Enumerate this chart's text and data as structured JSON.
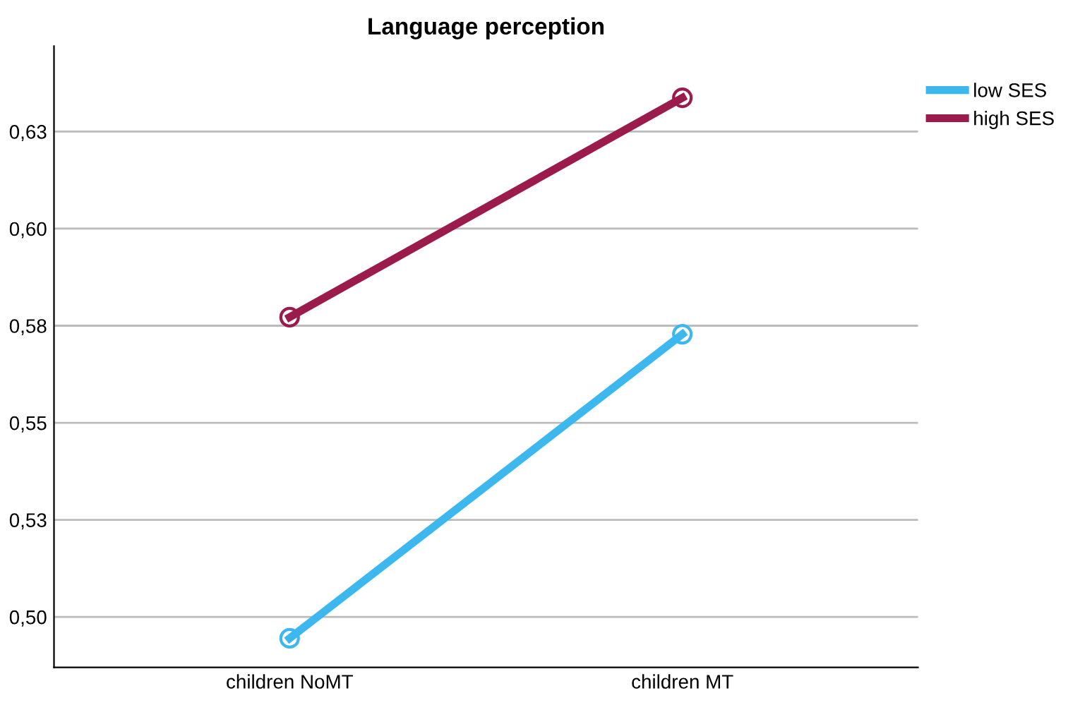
{
  "chart_data": {
    "type": "line",
    "title": "Language perception",
    "categories": [
      "children NoMT",
      "children MT"
    ],
    "series": [
      {
        "name": "low SES",
        "color": "#3db8ef",
        "values": [
          0.4945,
          0.5728
        ]
      },
      {
        "name": "high SES",
        "color": "#9a1b4c",
        "values": [
          0.5772,
          0.6337
        ]
      }
    ],
    "ylim": [
      0.487,
      0.647
    ],
    "yticks": [
      {
        "value": 0.5,
        "label": "0,50"
      },
      {
        "value": 0.525,
        "label": "0,53"
      },
      {
        "value": 0.55,
        "label": "0,55"
      },
      {
        "value": 0.575,
        "label": "0,58"
      },
      {
        "value": 0.6,
        "label": "0,60"
      },
      {
        "value": 0.625,
        "label": "0,63"
      }
    ],
    "grid": "y",
    "legend": "top right",
    "marker": "circle",
    "line_style": "solid"
  }
}
